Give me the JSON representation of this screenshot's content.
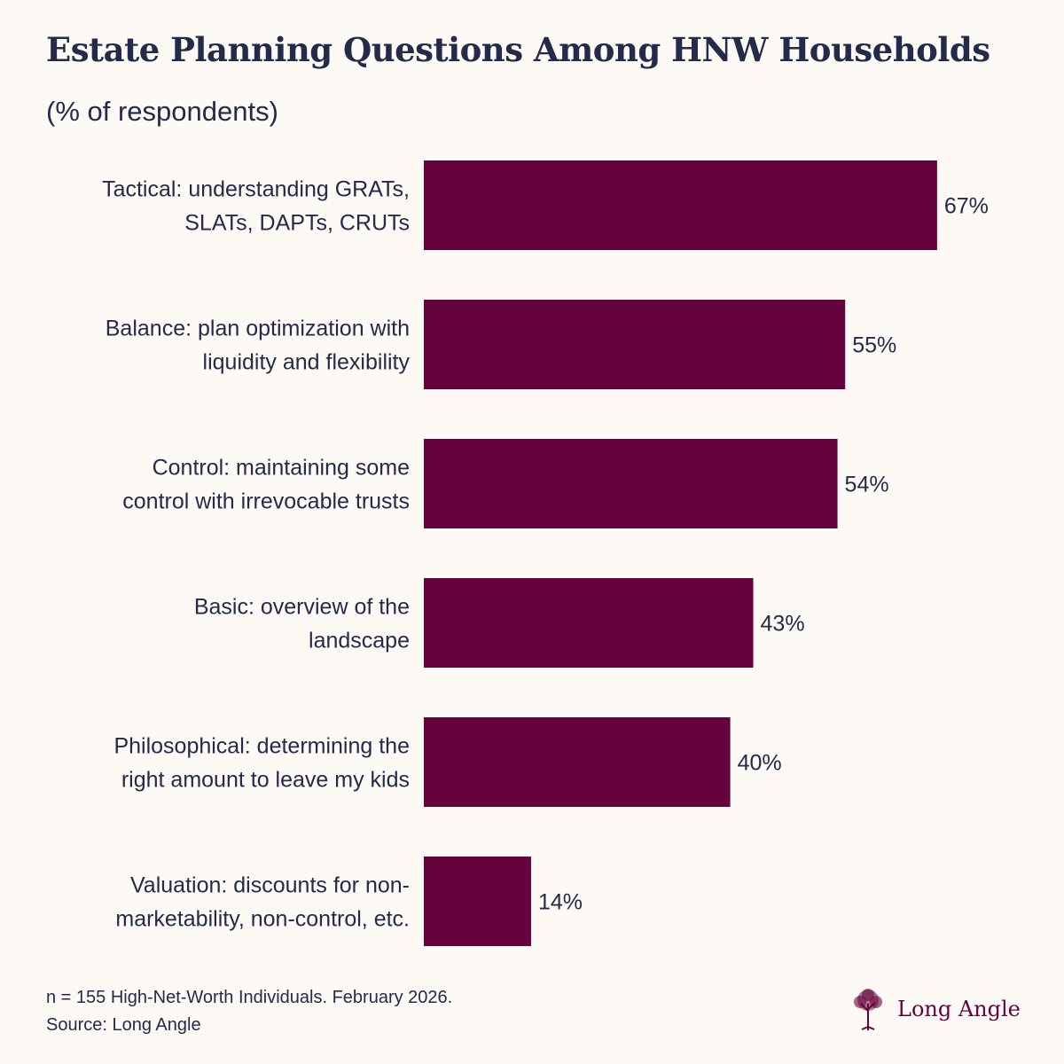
{
  "chart_data": {
    "type": "bar",
    "orientation": "horizontal",
    "title": "Estate Planning Questions Among HNW Households",
    "subtitle": "(% of respondents)",
    "categories": [
      [
        "Tactical: understanding GRATs,",
        "SLATs, DAPTs, CRUTs"
      ],
      [
        "Balance: plan optimization with",
        "liquidity and flexibility"
      ],
      [
        "Control: maintaining some",
        "control with irrevocable trusts"
      ],
      [
        "Basic: overview of the",
        "landscape"
      ],
      [
        "Philosophical: determining the",
        "right amount to leave my kids"
      ],
      [
        "Valuation: discounts for non-",
        "marketability, non-control, etc."
      ]
    ],
    "values": [
      67,
      55,
      54,
      43,
      40,
      14
    ],
    "value_labels": [
      "67%",
      "55%",
      "54%",
      "43%",
      "40%",
      "14%"
    ],
    "xlim": [
      0,
      100
    ],
    "grid": false,
    "bar_color": "#66023c"
  },
  "footer": {
    "note": "n = 155 High-Net-Worth Individuals. February 2026.",
    "source": "Source: Long Angle"
  },
  "logo": {
    "text": "Long Angle"
  },
  "colors": {
    "background": "#fdfaf5",
    "text": "#232a4a",
    "accent": "#66023c"
  }
}
